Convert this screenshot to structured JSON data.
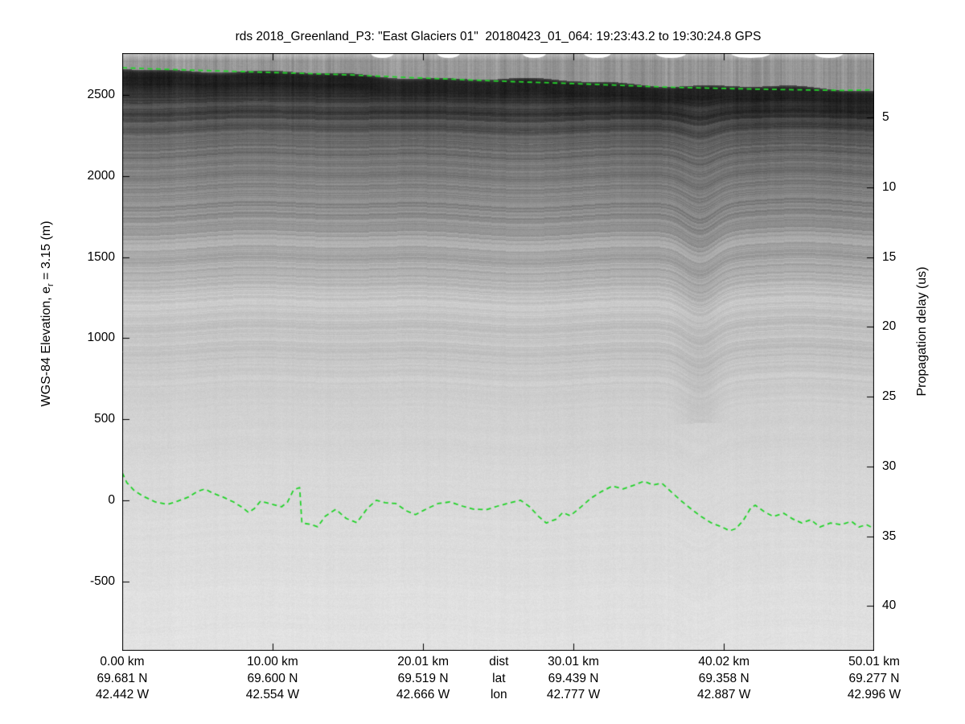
{
  "title": "rds 2018_Greenland_P3: \"East Glaciers 01\"  20180423_01_064: 19:23:43.2 to 19:30:24.8 GPS",
  "colors": {
    "pick_green": "#23d32a",
    "axis": "#000000",
    "background": "#ffffff"
  },
  "left_axis": {
    "label_prefix": "WGS-84 Elevation, e",
    "label_sub": "r",
    "label_suffix": " = 3.15 (m)",
    "ticks": [
      "2500",
      "2000",
      "1500",
      "1000",
      "500",
      "0",
      "-500"
    ],
    "tick_values": [
      2500,
      2000,
      1500,
      1000,
      500,
      0,
      -500
    ],
    "range_top_bottom": [
      2758,
      -928
    ]
  },
  "right_axis": {
    "label": "Propagation delay (us)",
    "ticks": [
      "5",
      "10",
      "15",
      "20",
      "25",
      "30",
      "35",
      "40"
    ],
    "tick_values": [
      5,
      10,
      15,
      20,
      25,
      30,
      35,
      40
    ],
    "range_top_bottom": [
      0.39,
      43.2
    ]
  },
  "x_axis": {
    "range_km": [
      0,
      50.01
    ],
    "row_labels": {
      "dist": "dist",
      "lat": "lat",
      "lon": "lon"
    },
    "legend_center_km": 25.05,
    "columns": [
      {
        "km": 0.0,
        "dist": "0.00 km",
        "lat": "69.681 N",
        "lon": "42.442 W"
      },
      {
        "km": 10.0,
        "dist": "10.00 km",
        "lat": "69.600 N",
        "lon": "42.554 W"
      },
      {
        "km": 20.01,
        "dist": "20.01 km",
        "lat": "69.519 N",
        "lon": "42.666 W"
      },
      {
        "km": 30.01,
        "dist": "30.01 km",
        "lat": "69.439 N",
        "lon": "42.777 W"
      },
      {
        "km": 40.02,
        "dist": "40.02 km",
        "lat": "69.358 N",
        "lon": "42.887 W"
      },
      {
        "km": 50.01,
        "dist": "50.01 km",
        "lat": "69.277 N",
        "lon": "42.996 W"
      }
    ]
  },
  "chart_data": {
    "type": "heatmap",
    "description": "Grayscale ice-penetrating radar echogram (radar depth sounder) with green dashed surface and bed picks",
    "x_range_km": [
      0,
      50.01
    ],
    "elevation_range_m": [
      -928,
      2758
    ],
    "delay_range_us": [
      0.39,
      43.2
    ],
    "fold_feature_km": 38.4,
    "top_white_patches_km": [
      [
        17.3,
        0.75
      ],
      [
        21.7,
        0.75
      ],
      [
        27.4,
        0.78
      ],
      [
        31.6,
        0.9
      ],
      [
        36.5,
        1.0
      ],
      [
        41.8,
        1.3
      ],
      [
        47.0,
        0.95
      ]
    ],
    "series": [
      {
        "name": "surface-pick",
        "style": "dashed",
        "color": "#23d32a",
        "points": [
          [
            0,
            2668
          ],
          [
            2,
            2661
          ],
          [
            4,
            2655
          ],
          [
            6,
            2649
          ],
          [
            8,
            2644
          ],
          [
            10,
            2638
          ],
          [
            12,
            2633
          ],
          [
            14,
            2627
          ],
          [
            16,
            2620
          ],
          [
            18,
            2612
          ],
          [
            20,
            2604
          ],
          [
            22,
            2597
          ],
          [
            24,
            2589
          ],
          [
            26,
            2582
          ],
          [
            28,
            2576
          ],
          [
            30,
            2570
          ],
          [
            32,
            2563
          ],
          [
            34,
            2556
          ],
          [
            36,
            2549
          ],
          [
            38,
            2544
          ],
          [
            40,
            2540
          ],
          [
            42,
            2536
          ],
          [
            44,
            2533
          ],
          [
            46,
            2530
          ],
          [
            48,
            2528
          ],
          [
            50.01,
            2532
          ]
        ]
      },
      {
        "name": "bed-pick",
        "style": "dashed",
        "color": "#23d32a",
        "points": [
          [
            0,
            170
          ],
          [
            0.3,
            110
          ],
          [
            0.8,
            60
          ],
          [
            1.4,
            25
          ],
          [
            2.2,
            -10
          ],
          [
            3.0,
            -25
          ],
          [
            3.7,
            -5
          ],
          [
            4.4,
            20
          ],
          [
            5.0,
            55
          ],
          [
            5.5,
            70
          ],
          [
            6.0,
            45
          ],
          [
            6.7,
            20
          ],
          [
            7.4,
            -10
          ],
          [
            8.0,
            -45
          ],
          [
            8.4,
            -75
          ],
          [
            8.8,
            -50
          ],
          [
            9.2,
            -5
          ],
          [
            9.8,
            -20
          ],
          [
            10.6,
            -40
          ],
          [
            11.0,
            -10
          ],
          [
            11.4,
            65
          ],
          [
            11.8,
            78
          ],
          [
            11.95,
            -140
          ],
          [
            12.5,
            -148
          ],
          [
            13.0,
            -163
          ],
          [
            13.5,
            -98
          ],
          [
            14.2,
            -55
          ],
          [
            14.9,
            -112
          ],
          [
            15.6,
            -138
          ],
          [
            16.3,
            -50
          ],
          [
            16.9,
            0
          ],
          [
            17.5,
            -15
          ],
          [
            18.2,
            -20
          ],
          [
            18.9,
            -65
          ],
          [
            19.5,
            -88
          ],
          [
            20.2,
            -55
          ],
          [
            21.0,
            -20
          ],
          [
            21.8,
            -10
          ],
          [
            22.6,
            -35
          ],
          [
            23.4,
            -55
          ],
          [
            24.2,
            -58
          ],
          [
            25.0,
            -35
          ],
          [
            25.8,
            -15
          ],
          [
            26.5,
            0
          ],
          [
            27.1,
            -40
          ],
          [
            27.7,
            -100
          ],
          [
            28.2,
            -140
          ],
          [
            28.9,
            -115
          ],
          [
            29.3,
            -75
          ],
          [
            29.8,
            -95
          ],
          [
            30.5,
            -42
          ],
          [
            31.2,
            15
          ],
          [
            31.9,
            55
          ],
          [
            32.6,
            88
          ],
          [
            33.3,
            70
          ],
          [
            34.0,
            92
          ],
          [
            34.7,
            118
          ],
          [
            35.3,
            95
          ],
          [
            35.9,
            105
          ],
          [
            36.6,
            45
          ],
          [
            37.2,
            -5
          ],
          [
            37.9,
            -58
          ],
          [
            38.5,
            -100
          ],
          [
            39.2,
            -140
          ],
          [
            39.9,
            -165
          ],
          [
            40.4,
            -188
          ],
          [
            40.8,
            -175
          ],
          [
            41.3,
            -125
          ],
          [
            41.8,
            -48
          ],
          [
            42.1,
            -30
          ],
          [
            42.7,
            -70
          ],
          [
            43.3,
            -100
          ],
          [
            44.0,
            -80
          ],
          [
            44.6,
            -115
          ],
          [
            45.2,
            -140
          ],
          [
            45.8,
            -120
          ],
          [
            46.4,
            -165
          ],
          [
            47.1,
            -140
          ],
          [
            47.8,
            -150
          ],
          [
            48.5,
            -130
          ],
          [
            49.0,
            -165
          ],
          [
            49.5,
            -150
          ],
          [
            50.01,
            -175
          ]
        ]
      }
    ]
  }
}
